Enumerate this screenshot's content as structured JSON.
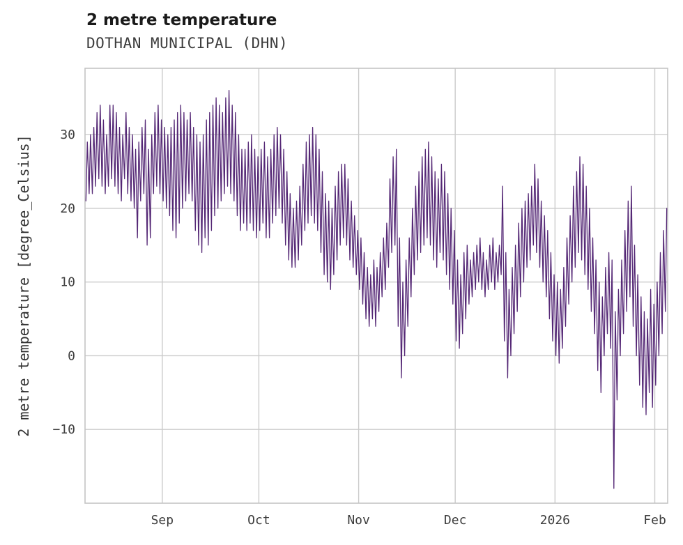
{
  "header": {
    "title": "2 metre temperature",
    "subtitle": "DOTHAN MUNICIPAL (DHN)"
  },
  "chart_data": {
    "type": "line",
    "title": "2 metre temperature",
    "subtitle": "DOTHAN MUNICIPAL (DHN)",
    "xlabel": "",
    "ylabel": "2 metre temperature [degree_Celsius]",
    "series_name": "2 metre temperature",
    "values_format": "per-day [min, max] in degree_Celsius, days counted from plot left edge (early August) to early February",
    "line_color": "#542775",
    "grid_color": "#cbcbcb",
    "border_color": "#c4c4c4",
    "ylim": [
      -20,
      39
    ],
    "xlim_days": [
      0,
      181
    ],
    "grid": true,
    "legend": "none",
    "y_ticks": [
      {
        "value": 30,
        "label": "30"
      },
      {
        "value": 20,
        "label": "20"
      },
      {
        "value": 10,
        "label": "10"
      },
      {
        "value": 0,
        "label": "0"
      },
      {
        "value": -10,
        "label": "−10"
      }
    ],
    "x_ticks": [
      {
        "day": 24,
        "label": "Sep"
      },
      {
        "day": 54,
        "label": "Oct"
      },
      {
        "day": 85,
        "label": "Nov"
      },
      {
        "day": 115,
        "label": "Dec"
      },
      {
        "day": 146,
        "label": "2026"
      },
      {
        "day": 177,
        "label": "Feb"
      }
    ],
    "daily_min_max": [
      [
        21,
        29
      ],
      [
        22,
        30
      ],
      [
        22,
        31
      ],
      [
        23,
        33
      ],
      [
        24,
        34
      ],
      [
        23,
        32
      ],
      [
        22,
        30
      ],
      [
        23,
        34
      ],
      [
        24,
        34
      ],
      [
        23,
        33
      ],
      [
        22,
        31
      ],
      [
        21,
        30
      ],
      [
        24,
        33
      ],
      [
        22,
        31
      ],
      [
        21,
        30
      ],
      [
        20,
        28
      ],
      [
        16,
        29
      ],
      [
        21,
        31
      ],
      [
        22,
        32
      ],
      [
        15,
        28
      ],
      [
        16,
        30
      ],
      [
        22,
        33
      ],
      [
        23,
        34
      ],
      [
        22,
        32
      ],
      [
        21,
        31
      ],
      [
        20,
        30
      ],
      [
        19,
        31
      ],
      [
        17,
        32
      ],
      [
        16,
        33
      ],
      [
        18,
        34
      ],
      [
        20,
        33
      ],
      [
        21,
        32
      ],
      [
        22,
        33
      ],
      [
        21,
        31
      ],
      [
        17,
        30
      ],
      [
        15,
        29
      ],
      [
        14,
        30
      ],
      [
        16,
        32
      ],
      [
        15,
        33
      ],
      [
        17,
        34
      ],
      [
        19,
        35
      ],
      [
        20,
        34
      ],
      [
        21,
        33
      ],
      [
        22,
        35
      ],
      [
        23,
        36
      ],
      [
        22,
        34
      ],
      [
        21,
        33
      ],
      [
        19,
        30
      ],
      [
        17,
        28
      ],
      [
        18,
        28
      ],
      [
        17,
        29
      ],
      [
        18,
        30
      ],
      [
        17,
        28
      ],
      [
        16,
        27
      ],
      [
        17,
        28
      ],
      [
        18,
        29
      ],
      [
        16,
        27
      ],
      [
        16,
        28
      ],
      [
        18,
        30
      ],
      [
        19,
        31
      ],
      [
        20,
        30
      ],
      [
        18,
        28
      ],
      [
        15,
        25
      ],
      [
        13,
        22
      ],
      [
        12,
        20
      ],
      [
        12,
        21
      ],
      [
        13,
        23
      ],
      [
        15,
        26
      ],
      [
        17,
        29
      ],
      [
        18,
        30
      ],
      [
        19,
        31
      ],
      [
        18,
        30
      ],
      [
        17,
        28
      ],
      [
        14,
        25
      ],
      [
        11,
        22
      ],
      [
        10,
        21
      ],
      [
        9,
        20
      ],
      [
        11,
        23
      ],
      [
        13,
        25
      ],
      [
        15,
        26
      ],
      [
        16,
        26
      ],
      [
        15,
        24
      ],
      [
        13,
        21
      ],
      [
        12,
        19
      ],
      [
        11,
        17
      ],
      [
        9,
        16
      ],
      [
        7,
        14
      ],
      [
        5,
        12
      ],
      [
        4,
        11
      ],
      [
        5,
        13
      ],
      [
        4,
        12
      ],
      [
        6,
        14
      ],
      [
        8,
        16
      ],
      [
        9,
        18
      ],
      [
        12,
        24
      ],
      [
        14,
        27
      ],
      [
        15,
        28
      ],
      [
        4,
        16
      ],
      [
        -3,
        10
      ],
      [
        0,
        13
      ],
      [
        4,
        16
      ],
      [
        8,
        20
      ],
      [
        11,
        23
      ],
      [
        13,
        25
      ],
      [
        14,
        27
      ],
      [
        15,
        28
      ],
      [
        16,
        29
      ],
      [
        15,
        27
      ],
      [
        13,
        25
      ],
      [
        12,
        24
      ],
      [
        14,
        26
      ],
      [
        13,
        25
      ],
      [
        11,
        22
      ],
      [
        9,
        20
      ],
      [
        7,
        17
      ],
      [
        2,
        13
      ],
      [
        1,
        11
      ],
      [
        3,
        14
      ],
      [
        5,
        15
      ],
      [
        7,
        13
      ],
      [
        8,
        14
      ],
      [
        9,
        15
      ],
      [
        10,
        16
      ],
      [
        9,
        14
      ],
      [
        8,
        13
      ],
      [
        9,
        15
      ],
      [
        10,
        16
      ],
      [
        9,
        14
      ],
      [
        10,
        15
      ],
      [
        11,
        23
      ],
      [
        2,
        14
      ],
      [
        -3,
        9
      ],
      [
        0,
        12
      ],
      [
        3,
        15
      ],
      [
        6,
        18
      ],
      [
        8,
        20
      ],
      [
        10,
        21
      ],
      [
        12,
        22
      ],
      [
        13,
        23
      ],
      [
        15,
        26
      ],
      [
        14,
        24
      ],
      [
        12,
        21
      ],
      [
        10,
        19
      ],
      [
        8,
        17
      ],
      [
        5,
        14
      ],
      [
        2,
        11
      ],
      [
        0,
        10
      ],
      [
        -1,
        9
      ],
      [
        1,
        12
      ],
      [
        4,
        16
      ],
      [
        7,
        19
      ],
      [
        10,
        23
      ],
      [
        12,
        25
      ],
      [
        14,
        27
      ],
      [
        13,
        26
      ],
      [
        11,
        23
      ],
      [
        9,
        20
      ],
      [
        6,
        16
      ],
      [
        3,
        13
      ],
      [
        -2,
        10
      ],
      [
        -5,
        8
      ],
      [
        0,
        12
      ],
      [
        3,
        14
      ],
      [
        1,
        13
      ],
      [
        -18,
        6
      ],
      [
        -6,
        9
      ],
      [
        0,
        13
      ],
      [
        3,
        17
      ],
      [
        6,
        21
      ],
      [
        8,
        23
      ],
      [
        4,
        15
      ],
      [
        0,
        11
      ],
      [
        -4,
        8
      ],
      [
        -7,
        6
      ],
      [
        -8,
        5
      ],
      [
        -5,
        9
      ],
      [
        -7,
        7
      ],
      [
        -4,
        10
      ],
      [
        0,
        14
      ],
      [
        3,
        17
      ],
      [
        6,
        20
      ]
    ]
  }
}
